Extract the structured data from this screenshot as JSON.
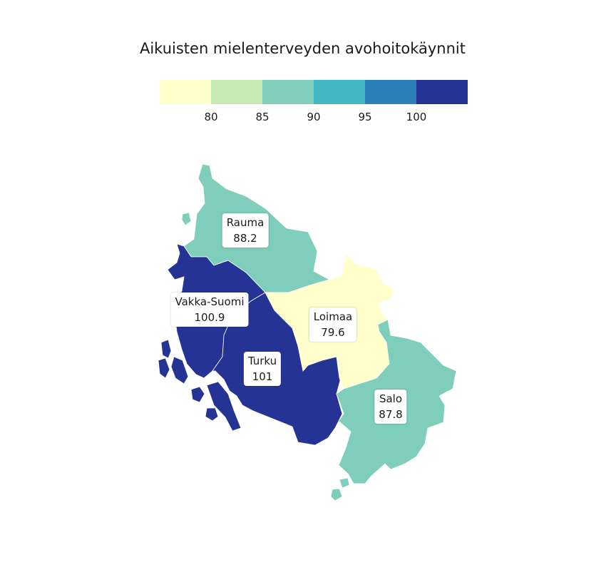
{
  "title": "Aikuisten mielenterveyden avohoitokäynnit",
  "legend": {
    "bins": [
      {
        "color": "#ffffcc"
      },
      {
        "color": "#c7e9b4"
      },
      {
        "color": "#7fcdbb"
      },
      {
        "color": "#41b6c4"
      },
      {
        "color": "#2c7fb8"
      },
      {
        "color": "#253494"
      }
    ],
    "ticks": [
      "80",
      "85",
      "90",
      "95",
      "100"
    ]
  },
  "regions": [
    {
      "name": "Rauma",
      "value": "88.2",
      "color": "#7fcdbb"
    },
    {
      "name": "Vakka-Suomi",
      "value": "100.9",
      "color": "#253494"
    },
    {
      "name": "Loimaa",
      "value": "79.6",
      "color": "#ffffcc"
    },
    {
      "name": "Turku",
      "value": "101",
      "color": "#253494"
    },
    {
      "name": "Salo",
      "value": "87.8",
      "color": "#7fcdbb"
    }
  ]
}
